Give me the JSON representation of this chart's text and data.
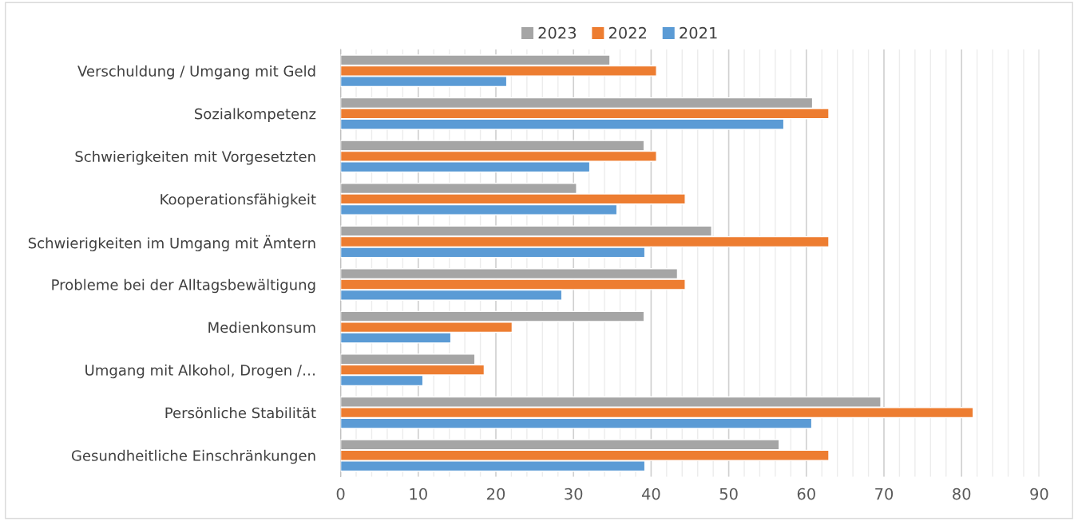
{
  "chart_data": {
    "type": "bar",
    "orientation": "horizontal",
    "categories": [
      "Verschuldung / Umgang mit Geld",
      "Sozialkompetenz",
      "Schwierigkeiten mit Vorgesetzten",
      "Kooperationsfähigkeit",
      "Schwierigkeiten im Umgang mit Ämtern",
      "Probleme bei der Alltagsbewältigung",
      "Medienkonsum",
      "Umgang mit Alkohol, Drogen /…",
      "Persönliche Stabilität",
      "Gesundheitliche Einschränkungen"
    ],
    "series": [
      {
        "name": "2023",
        "color": "#a5a5a5",
        "values": [
          34.7,
          60.8,
          39.1,
          30.4,
          47.8,
          43.4,
          39.1,
          17.3,
          69.6,
          56.5
        ]
      },
      {
        "name": "2022",
        "color": "#ed7d31",
        "values": [
          40.7,
          62.9,
          40.7,
          44.4,
          62.9,
          44.4,
          22.1,
          18.5,
          81.5,
          62.9
        ]
      },
      {
        "name": "2021",
        "color": "#5b9bd5",
        "values": [
          21.4,
          57.1,
          32.1,
          35.6,
          39.2,
          28.5,
          14.2,
          10.6,
          60.7,
          39.2
        ]
      }
    ],
    "xlim": [
      0,
      90
    ],
    "xticks": [
      0,
      10,
      20,
      30,
      40,
      50,
      60,
      70,
      80,
      90
    ],
    "grid": "x",
    "legend": "top"
  }
}
